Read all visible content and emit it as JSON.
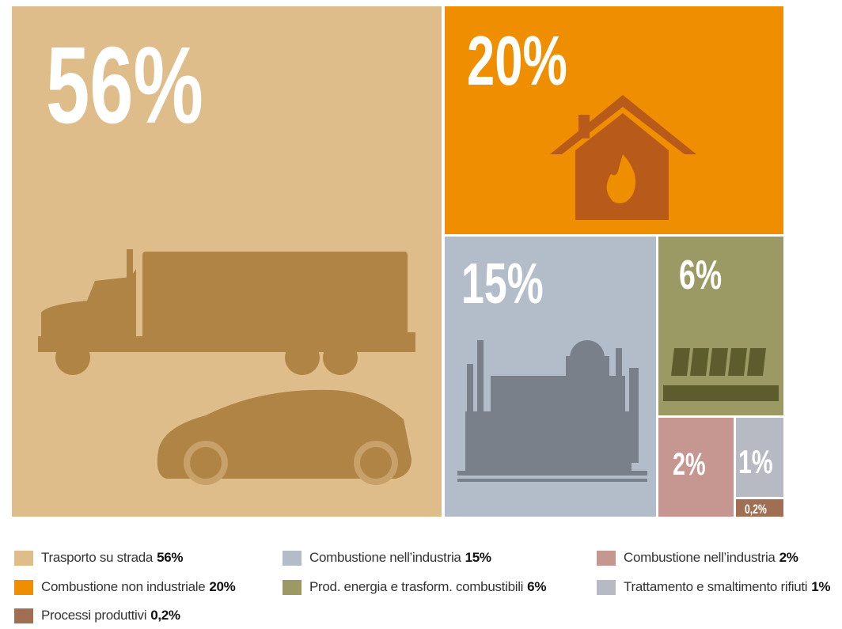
{
  "chart_data": {
    "type": "treemap",
    "categories": [
      "Trasporto su strada",
      "Combustione non industriale",
      "Combustione nell’industria",
      "Prod. energia e trasform. combustibili",
      "Combustione nell’industria",
      "Trattamento e smaltimento rifiuti",
      "Processi produttivi"
    ],
    "values": [
      56,
      20,
      15,
      6,
      2,
      1,
      0.2
    ],
    "value_labels": [
      "56%",
      "20%",
      "15%",
      "6%",
      "2%",
      "1%",
      "0,2%"
    ],
    "colors": [
      "#dfbd8a",
      "#ef8f00",
      "#b3bdc9",
      "#9c9a64",
      "#c69690",
      "#b7bac3",
      "#a06e52"
    ]
  }
}
